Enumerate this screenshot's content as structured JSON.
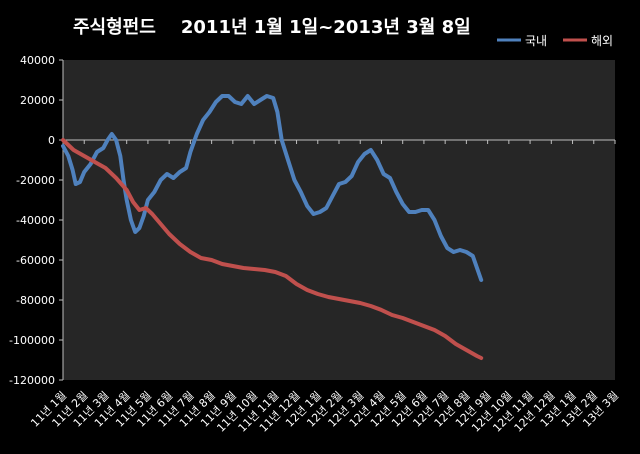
{
  "chart_data": {
    "type": "line",
    "title": "주식형펀드    2011년 1월 1일~2013년 3월 8일",
    "xlabel": "",
    "ylabel": "",
    "ylim": [
      -120000,
      40000
    ],
    "y_ticks": [
      40000,
      20000,
      0,
      -20000,
      -40000,
      -60000,
      -80000,
      -100000,
      -120000
    ],
    "y_tick_labels": [
      "40000",
      "20000",
      "0",
      "-20000",
      "-40000",
      "-60000",
      "-80000",
      "-100000",
      "-120000"
    ],
    "categories": [
      "11년 1월",
      "11년 2월",
      "11년 3월",
      "11년 4월",
      "11년 5월",
      "11년 6월",
      "11년 7월",
      "11년 8월",
      "11년 9월",
      "11년 10월",
      "11년 11월",
      "11년 12월",
      "12년 1월",
      "12년 2월",
      "12년 3월",
      "12년 4월",
      "12년 5월",
      "12년 6월",
      "12년 7월",
      "12년 8월",
      "12년 9월",
      "12년 10월",
      "12년 11월",
      "12년 12월",
      "13년 1월",
      "13년 2월",
      "13년 3월"
    ],
    "grid": false,
    "legend_position": "top-right",
    "series": [
      {
        "name": "국내",
        "color": "#4f81bd",
        "points": [
          [
            0,
            -3000
          ],
          [
            0.25,
            -8000
          ],
          [
            0.45,
            -15000
          ],
          [
            0.6,
            -22000
          ],
          [
            0.8,
            -21000
          ],
          [
            1.0,
            -16000
          ],
          [
            1.3,
            -12000
          ],
          [
            1.6,
            -6000
          ],
          [
            1.9,
            -4000
          ],
          [
            2.1,
            0
          ],
          [
            2.3,
            3000
          ],
          [
            2.5,
            0
          ],
          [
            2.7,
            -8000
          ],
          [
            2.85,
            -20000
          ],
          [
            3.0,
            -30000
          ],
          [
            3.2,
            -40000
          ],
          [
            3.4,
            -46000
          ],
          [
            3.6,
            -44000
          ],
          [
            3.8,
            -38000
          ],
          [
            4.0,
            -30000
          ],
          [
            4.3,
            -26000
          ],
          [
            4.6,
            -20000
          ],
          [
            4.9,
            -17000
          ],
          [
            5.2,
            -19000
          ],
          [
            5.5,
            -16000
          ],
          [
            5.8,
            -14000
          ],
          [
            6.0,
            -6000
          ],
          [
            6.3,
            3000
          ],
          [
            6.6,
            10000
          ],
          [
            6.9,
            14000
          ],
          [
            7.2,
            19000
          ],
          [
            7.5,
            22000
          ],
          [
            7.8,
            22000
          ],
          [
            8.1,
            19000
          ],
          [
            8.4,
            18000
          ],
          [
            8.7,
            22000
          ],
          [
            9.0,
            18000
          ],
          [
            9.3,
            20000
          ],
          [
            9.6,
            22000
          ],
          [
            9.9,
            21000
          ],
          [
            10.1,
            14000
          ],
          [
            10.3,
            0
          ],
          [
            10.6,
            -10000
          ],
          [
            10.9,
            -20000
          ],
          [
            11.2,
            -26000
          ],
          [
            11.5,
            -33000
          ],
          [
            11.8,
            -37000
          ],
          [
            12.1,
            -36000
          ],
          [
            12.4,
            -34000
          ],
          [
            12.7,
            -28000
          ],
          [
            13.0,
            -22000
          ],
          [
            13.3,
            -21000
          ],
          [
            13.6,
            -18000
          ],
          [
            13.9,
            -11000
          ],
          [
            14.2,
            -7000
          ],
          [
            14.5,
            -5000
          ],
          [
            14.8,
            -10000
          ],
          [
            15.1,
            -17000
          ],
          [
            15.4,
            -19000
          ],
          [
            15.7,
            -26000
          ],
          [
            16.0,
            -32000
          ],
          [
            16.3,
            -36000
          ],
          [
            16.6,
            -36000
          ],
          [
            16.9,
            -35000
          ],
          [
            17.2,
            -35000
          ],
          [
            17.5,
            -40000
          ],
          [
            17.8,
            -48000
          ],
          [
            18.1,
            -54000
          ],
          [
            18.4,
            -56000
          ],
          [
            18.7,
            -55000
          ],
          [
            19.0,
            -56000
          ],
          [
            19.3,
            -58000
          ],
          [
            19.5,
            -64000
          ],
          [
            19.7,
            -70000
          ]
        ]
      },
      {
        "name": "해외",
        "color": "#c0504d",
        "points": [
          [
            0,
            0
          ],
          [
            0.5,
            -5000
          ],
          [
            1.0,
            -8000
          ],
          [
            1.5,
            -11000
          ],
          [
            2.0,
            -14000
          ],
          [
            2.5,
            -19000
          ],
          [
            3.0,
            -25000
          ],
          [
            3.3,
            -31000
          ],
          [
            3.6,
            -35000
          ],
          [
            3.9,
            -34000
          ],
          [
            4.2,
            -37000
          ],
          [
            4.6,
            -42000
          ],
          [
            5.0,
            -47000
          ],
          [
            5.5,
            -52000
          ],
          [
            6.0,
            -56000
          ],
          [
            6.5,
            -59000
          ],
          [
            7.0,
            -60000
          ],
          [
            7.5,
            -62000
          ],
          [
            8.0,
            -63000
          ],
          [
            8.5,
            -64000
          ],
          [
            9.0,
            -64500
          ],
          [
            9.5,
            -65000
          ],
          [
            10.0,
            -66000
          ],
          [
            10.5,
            -68000
          ],
          [
            11.0,
            -72000
          ],
          [
            11.5,
            -75000
          ],
          [
            12.0,
            -77000
          ],
          [
            12.5,
            -78500
          ],
          [
            13.0,
            -79500
          ],
          [
            13.5,
            -80500
          ],
          [
            14.0,
            -81500
          ],
          [
            14.5,
            -83000
          ],
          [
            15.0,
            -85000
          ],
          [
            15.5,
            -87500
          ],
          [
            16.0,
            -89000
          ],
          [
            16.5,
            -91000
          ],
          [
            17.0,
            -93000
          ],
          [
            17.5,
            -95000
          ],
          [
            18.0,
            -98000
          ],
          [
            18.5,
            -102000
          ],
          [
            19.0,
            -105000
          ],
          [
            19.5,
            -108000
          ],
          [
            19.7,
            -109000
          ]
        ]
      }
    ]
  }
}
